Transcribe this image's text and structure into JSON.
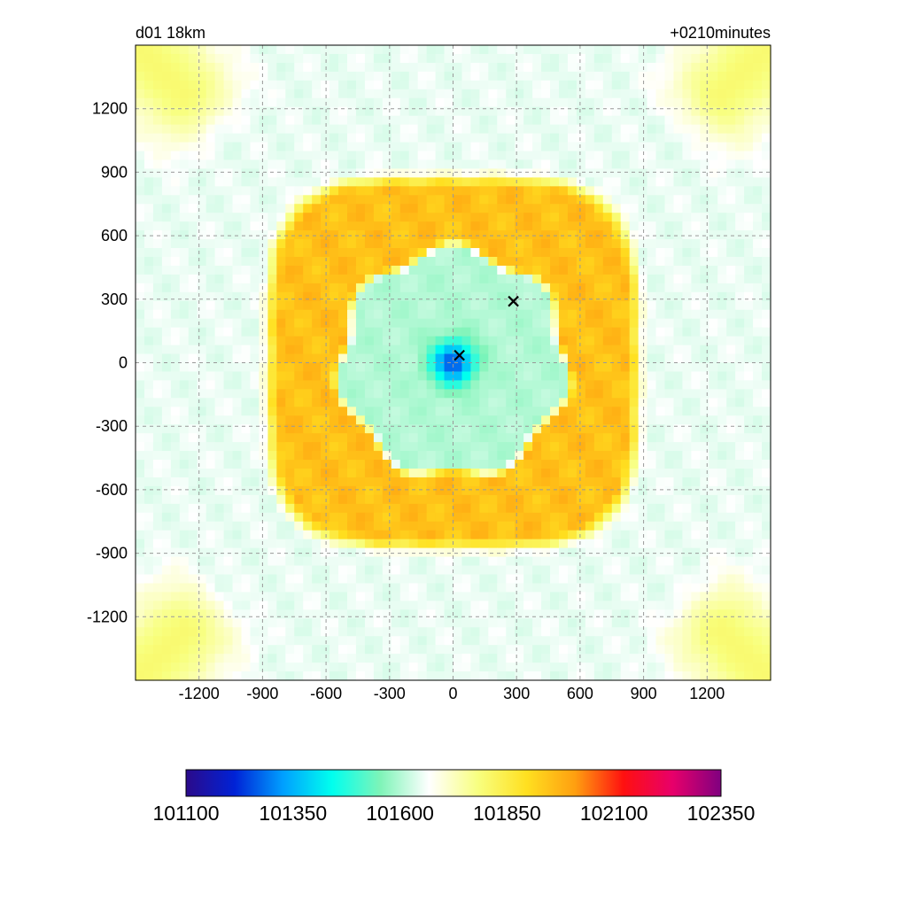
{
  "chart_data": {
    "type": "heatmap",
    "title_left": "d01 18km",
    "title_right": "+0210minutes",
    "xlabel": "",
    "ylabel": "",
    "xlim": [
      -1500,
      1500
    ],
    "ylim": [
      -1500,
      1500
    ],
    "x_ticks": [
      -1200,
      -900,
      -600,
      -300,
      0,
      300,
      600,
      900,
      1200
    ],
    "y_ticks": [
      1200,
      900,
      600,
      300,
      0,
      -300,
      -600,
      -900,
      -1200
    ],
    "grid": true,
    "grid_style": "dashed",
    "field_description": "quasi-square ring field, low center near (0,0)",
    "field_levels": {
      "center": 101250,
      "inner_disk": 101600,
      "inner_disk_radius": 550,
      "ring": 101950,
      "ring_peak_edge": 550,
      "ring_outer_edge": 900,
      "outer_band": 101650,
      "corners": 101800
    },
    "markers": [
      {
        "symbol": "x",
        "x": 30,
        "y": 35
      },
      {
        "symbol": "x",
        "x": 285,
        "y": 290
      }
    ],
    "colorbar": {
      "min": 101100,
      "max": 102350,
      "ticks": [
        101100,
        101350,
        101600,
        101850,
        102100,
        102350
      ],
      "colors": [
        "#2b0a8a",
        "#0022d6",
        "#00a0ff",
        "#00ffee",
        "#7ff4b8",
        "#ffffff",
        "#f8ff80",
        "#ffe020",
        "#ff9f10",
        "#ff1010",
        "#e8006a",
        "#800080"
      ]
    }
  }
}
